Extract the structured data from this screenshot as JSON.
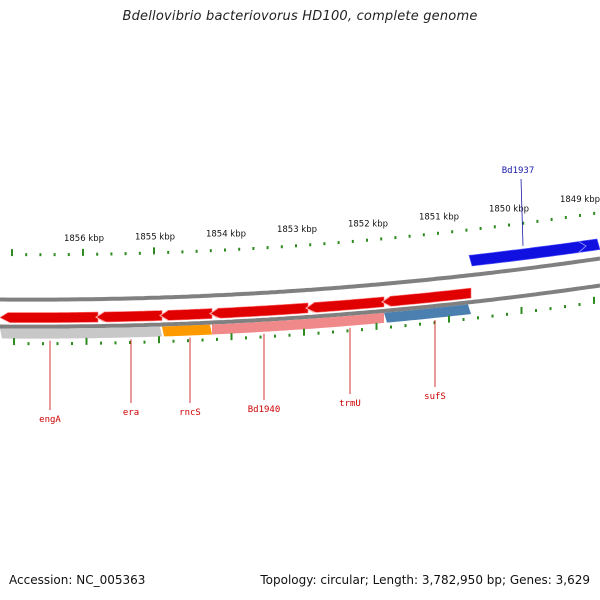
{
  "title": "Bdellovibrio bacteriovorus HD100, complete genome",
  "footer": {
    "accession": "Accession: NC_005363",
    "stats": "Topology: circular; Length: 3,782,950 bp; Genes: 3,629"
  },
  "colors": {
    "background": "#ffffff",
    "tick": "#2e8b1f",
    "forward_gene": "#1010e0",
    "reverse_gene": "#e00000",
    "gene_label": "#cc0000",
    "forward_label": "#1a1aa8",
    "backbone": "#808080",
    "track_cog_orange": "#ff9900",
    "track_cog_pink": "#f08a8a",
    "track_cog_steel": "#4a7fb0",
    "track_cog_none": "#c8c8c8"
  },
  "scale_labels": [
    "1856 kbp",
    "1855 kbp",
    "1854 kbp",
    "1853 kbp",
    "1852 kbp",
    "1851 kbp",
    "1850 kbp",
    "1849 kbp"
  ],
  "genes": [
    {
      "name": "engA",
      "strand": "reverse"
    },
    {
      "name": "era",
      "strand": "reverse"
    },
    {
      "name": "rncS",
      "strand": "reverse"
    },
    {
      "name": "Bd1940",
      "strand": "reverse"
    },
    {
      "name": "trmU",
      "strand": "reverse"
    },
    {
      "name": "sufS",
      "strand": "reverse"
    },
    {
      "name": "Bd1937",
      "strand": "forward"
    }
  ]
}
